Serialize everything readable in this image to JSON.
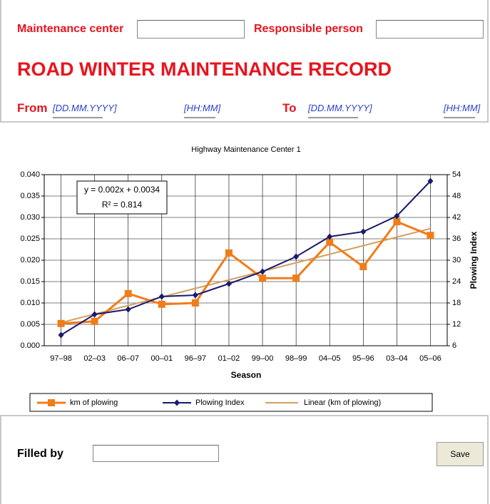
{
  "form": {
    "maintenance_center_label": "Maintenance center",
    "responsible_person_label": "Responsible person",
    "title": "ROAD WINTER MAINTENANCE RECORD",
    "from_label": "From",
    "from_date": "[DD.MM.YYYY]",
    "from_time": "[HH:MM]",
    "to_label": "To",
    "to_date": "[DD.MM.YYYY]",
    "to_time": "[HH:MM]",
    "filled_by_label": "Filled by",
    "save_button": "Save"
  },
  "chart_data": {
    "type": "line",
    "title": "Highway Maintenance Center 1",
    "x_label": "Season",
    "y2_label": "Plowing Index",
    "categories": [
      "97–98",
      "02–03",
      "06–07",
      "00–01",
      "96–97",
      "01–02",
      "99–00",
      "98–99",
      "04–05",
      "95–96",
      "03–04",
      "05–06"
    ],
    "series": [
      {
        "name": "km of plowing",
        "color": "#f07d1a",
        "marker": "square",
        "values": [
          0.0052,
          0.0057,
          0.0122,
          0.0097,
          0.01,
          0.0217,
          0.0158,
          0.0158,
          0.0242,
          0.0185,
          0.029,
          0.0258
        ]
      },
      {
        "name": "Plowing Index",
        "color": "#1a1a6e",
        "marker": "diamond",
        "axis": "y2",
        "values": [
          9,
          14.8,
          16.2,
          19.8,
          20.2,
          23.4,
          26.8,
          31,
          36.6,
          38,
          42.4,
          52.2
        ]
      }
    ],
    "trendline": {
      "name": "Linear (km of plowing)",
      "color": "#d4a060",
      "slope": 0.002,
      "intercept": 0.0034
    },
    "annotation": {
      "equation": "y = 0.002x + 0.0034",
      "r_squared": "R² = 0.814"
    },
    "ylim": [
      0,
      0.04
    ],
    "yticks": [
      {
        "value": 0,
        "label": "0.000"
      },
      {
        "value": 0.005,
        "label": "0.005"
      },
      {
        "value": 0.01,
        "label": "0.010"
      },
      {
        "value": 0.015,
        "label": "0.015"
      },
      {
        "value": 0.02,
        "label": "0.020"
      },
      {
        "value": 0.025,
        "label": "0.025"
      },
      {
        "value": 0.03,
        "label": "0.030"
      },
      {
        "value": 0.035,
        "label": "0.035"
      },
      {
        "value": 0.04,
        "label": "0.040"
      }
    ],
    "y2lim": [
      6,
      54
    ],
    "y2ticks": [
      6,
      12,
      18,
      24,
      30,
      36,
      42,
      48,
      54
    ],
    "grid": true,
    "legend": "bottom"
  }
}
